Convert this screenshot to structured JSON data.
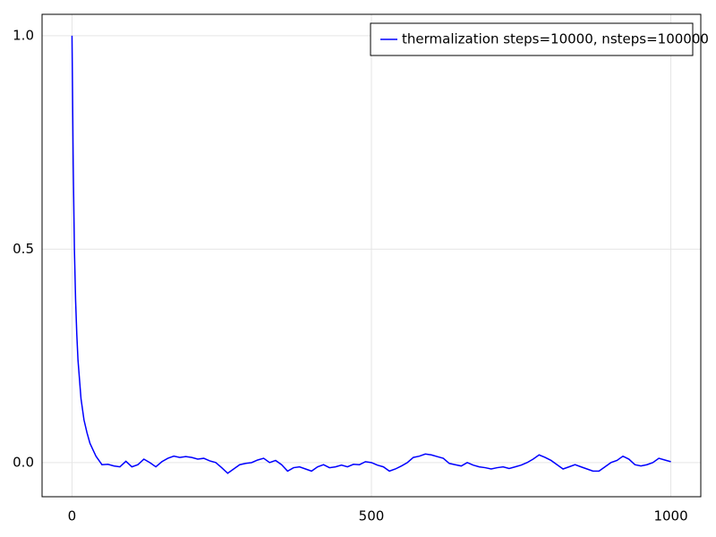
{
  "chart_data": {
    "type": "line",
    "x": [
      0,
      2,
      4,
      6,
      8,
      10,
      15,
      20,
      25,
      30,
      35,
      40,
      45,
      50,
      60,
      70,
      80,
      90,
      100,
      110,
      120,
      130,
      140,
      150,
      160,
      170,
      180,
      190,
      200,
      210,
      220,
      230,
      240,
      250,
      260,
      270,
      280,
      290,
      300,
      310,
      320,
      330,
      340,
      350,
      360,
      370,
      380,
      390,
      400,
      410,
      420,
      430,
      440,
      450,
      460,
      470,
      480,
      490,
      500,
      510,
      520,
      530,
      540,
      550,
      560,
      570,
      580,
      590,
      600,
      610,
      620,
      630,
      640,
      650,
      660,
      670,
      680,
      690,
      700,
      710,
      720,
      730,
      740,
      750,
      760,
      770,
      780,
      790,
      800,
      810,
      820,
      830,
      840,
      850,
      860,
      870,
      880,
      890,
      900,
      910,
      920,
      930,
      940,
      950,
      960,
      970,
      980,
      990,
      1000
    ],
    "series": [
      {
        "name": "thermalization steps=10000, nsteps=100000",
        "color": "#0000ff",
        "values": [
          1.0,
          0.7,
          0.5,
          0.38,
          0.3,
          0.24,
          0.15,
          0.1,
          0.07,
          0.045,
          0.03,
          0.015,
          0.005,
          -0.005,
          -0.004,
          -0.008,
          -0.01,
          0.003,
          -0.01,
          -0.005,
          0.008,
          0.0,
          -0.01,
          0.002,
          0.01,
          0.015,
          0.012,
          0.014,
          0.012,
          0.008,
          0.01,
          0.004,
          0.0,
          -0.012,
          -0.025,
          -0.015,
          -0.005,
          -0.002,
          0.0,
          0.006,
          0.01,
          0.0,
          0.005,
          -0.005,
          -0.02,
          -0.012,
          -0.01,
          -0.015,
          -0.02,
          -0.01,
          -0.005,
          -0.012,
          -0.01,
          -0.006,
          -0.01,
          -0.004,
          -0.005,
          0.002,
          0.0,
          -0.006,
          -0.01,
          -0.02,
          -0.015,
          -0.008,
          0.0,
          0.012,
          0.015,
          0.02,
          0.018,
          0.014,
          0.01,
          -0.002,
          -0.005,
          -0.008,
          0.0,
          -0.006,
          -0.01,
          -0.012,
          -0.015,
          -0.012,
          -0.01,
          -0.014,
          -0.01,
          -0.006,
          0.0,
          0.008,
          0.018,
          0.012,
          0.005,
          -0.005,
          -0.015,
          -0.01,
          -0.005,
          -0.01,
          -0.015,
          -0.02,
          -0.02,
          -0.01,
          0.0,
          0.005,
          0.015,
          0.008,
          -0.005,
          -0.008,
          -0.005,
          0.0,
          0.01,
          0.006,
          0.002
        ]
      }
    ],
    "xlim": [
      -50,
      1050
    ],
    "ylim": [
      -0.08,
      1.05
    ],
    "xticks": [
      0,
      500,
      1000
    ],
    "yticks": [
      {
        "value": 0,
        "label": "0.0"
      },
      0.5,
      {
        "value": 1,
        "label": "1.0"
      }
    ],
    "grid": true,
    "legend": "top-right"
  }
}
